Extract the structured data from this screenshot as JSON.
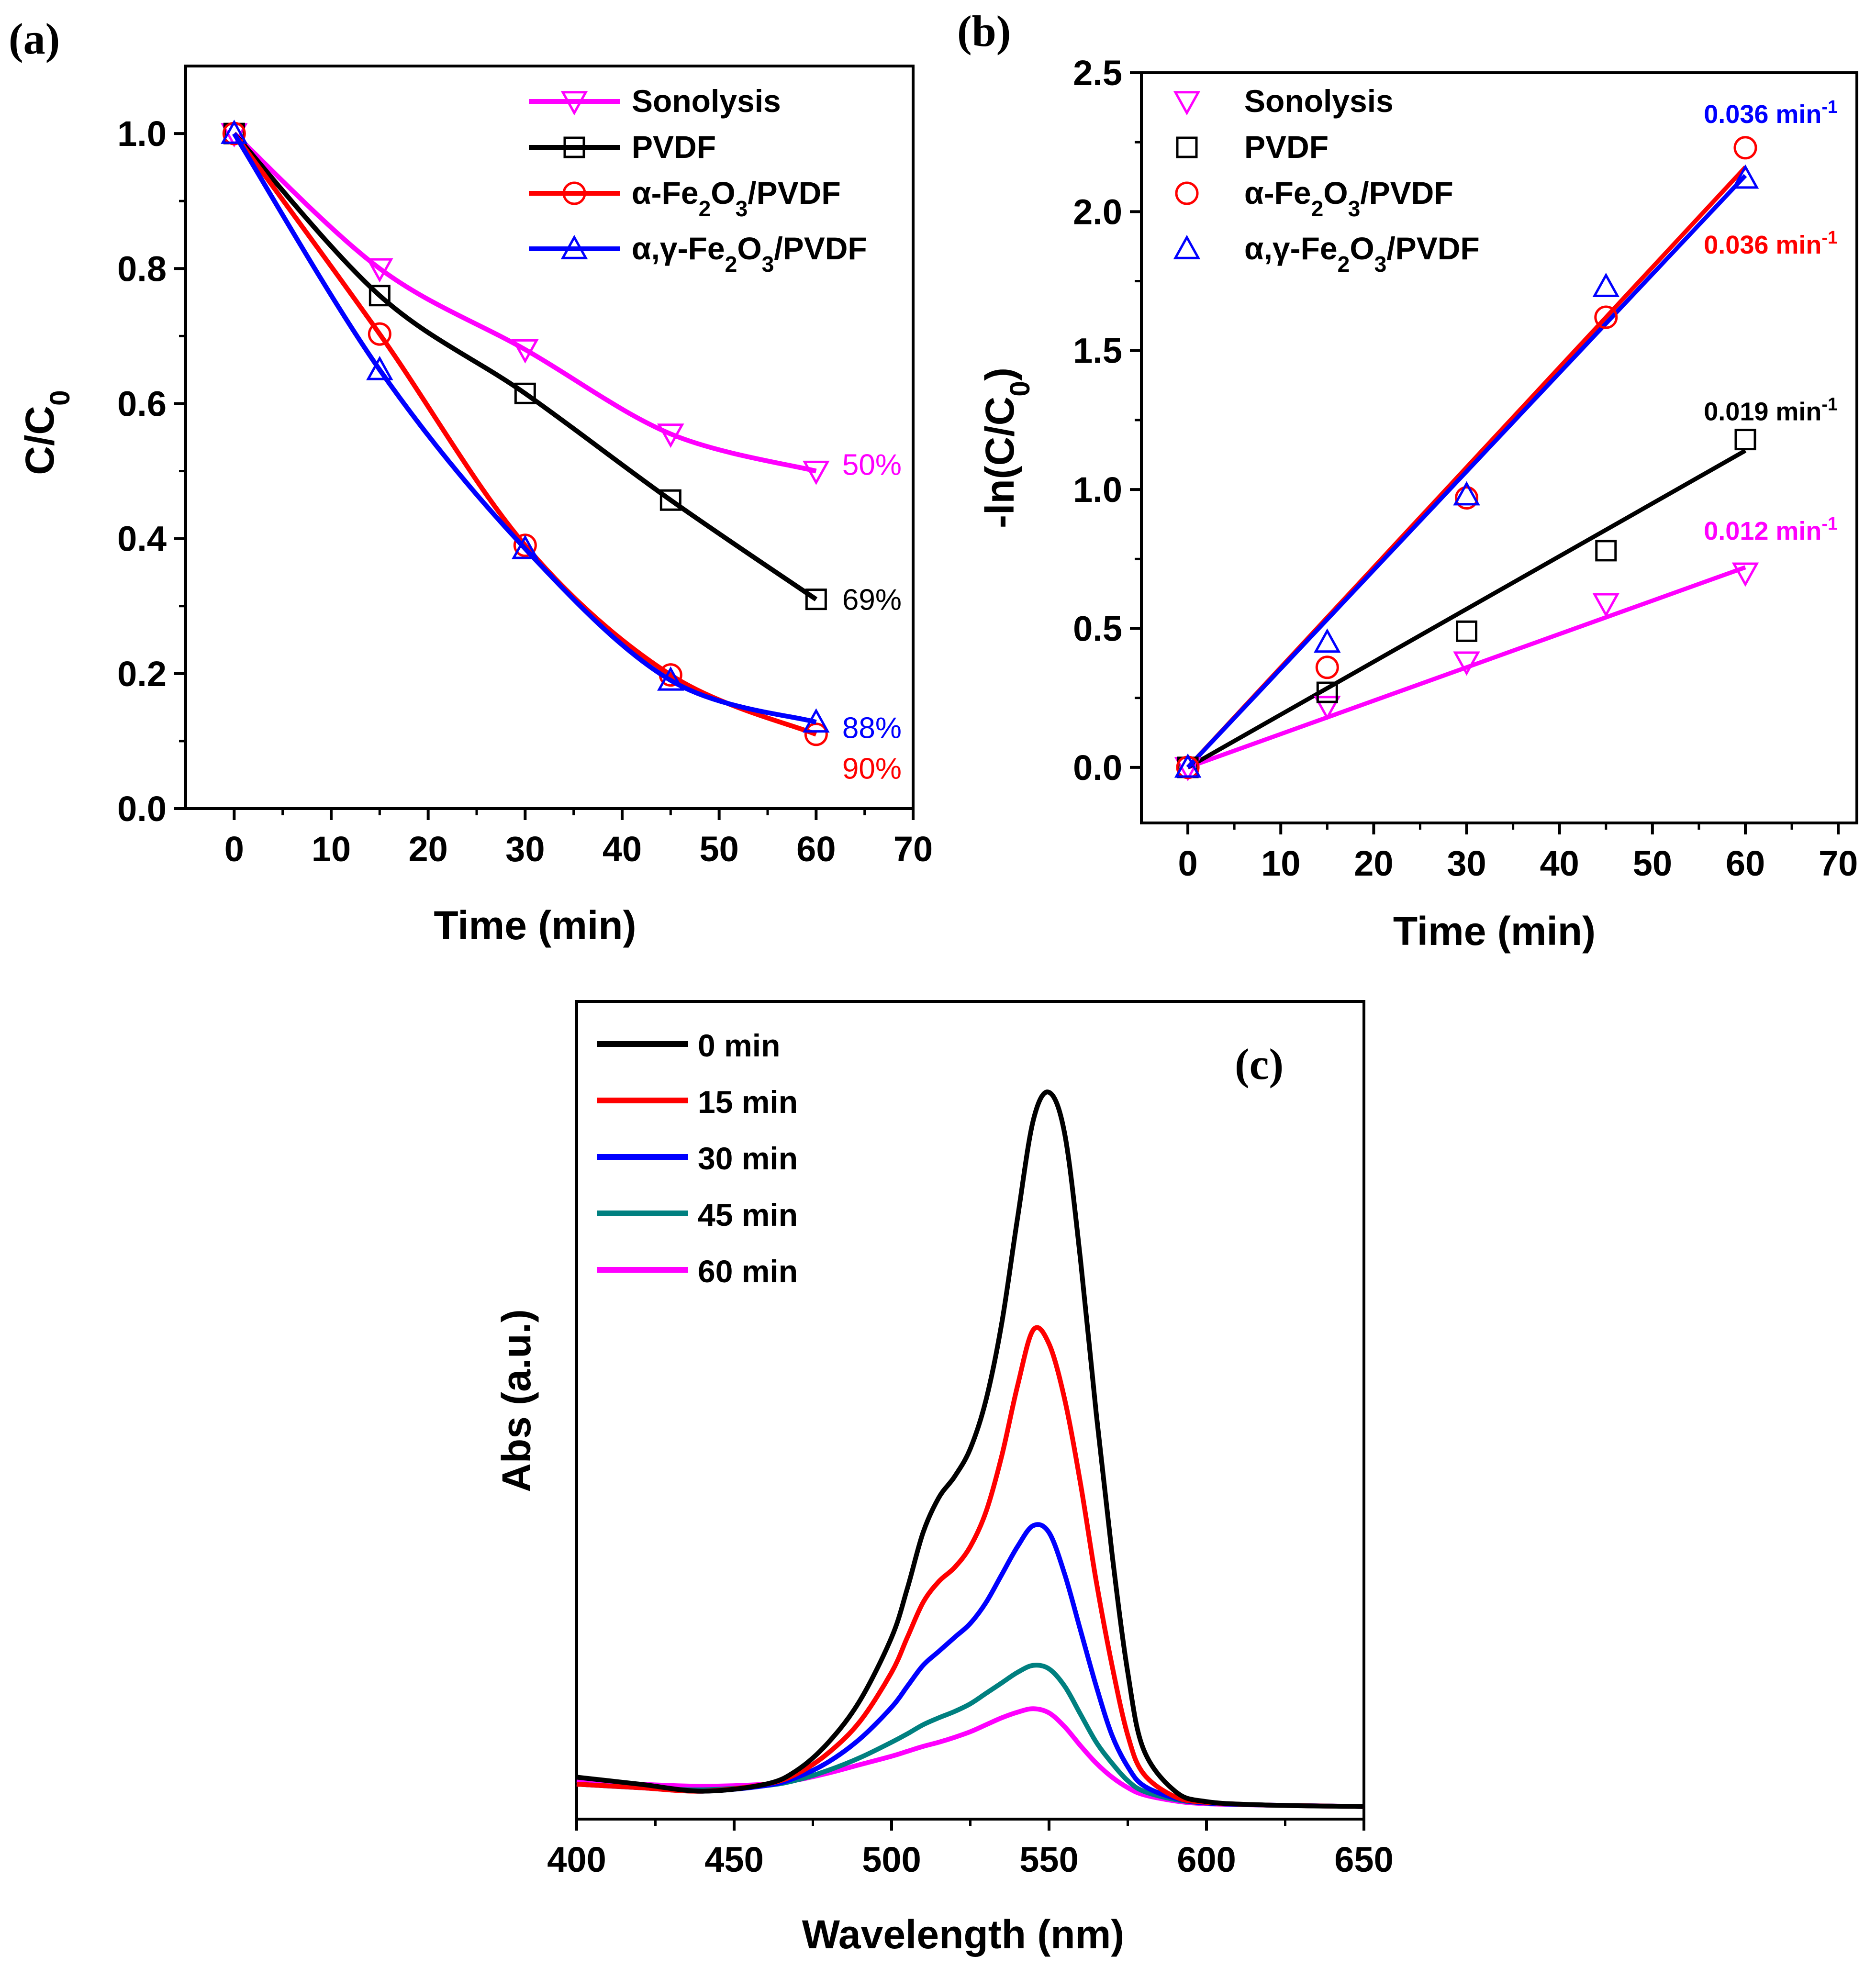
{
  "chart_data": [
    {
      "panel": "(a)",
      "type": "line",
      "xlabel": "Time (min)",
      "ylabel": "C/C0",
      "xlim": [
        -5,
        70
      ],
      "ylim": [
        0,
        1.1
      ],
      "xticks": [
        0,
        10,
        20,
        30,
        40,
        50,
        60,
        70
      ],
      "yticks": [
        0.0,
        0.2,
        0.4,
        0.6,
        0.8,
        1.0
      ],
      "xtick_labels": [
        "0",
        "10",
        "20",
        "30",
        "40",
        "50",
        "60",
        "70"
      ],
      "ytick_labels": [
        "0.0",
        "0.2",
        "0.4",
        "0.6",
        "0.8",
        "1.0"
      ],
      "legend_position": "top-right",
      "series": [
        {
          "name": "Sonolysis",
          "color": "#ff00ff",
          "marker": "triangle-down",
          "x": [
            0,
            15,
            30,
            45,
            60
          ],
          "y": [
            1.0,
            0.8,
            0.68,
            0.555,
            0.5
          ]
        },
        {
          "name": "PVDF",
          "color": "#000000",
          "marker": "square",
          "x": [
            0,
            15,
            30,
            45,
            60
          ],
          "y": [
            1.0,
            0.76,
            0.615,
            0.457,
            0.31
          ]
        },
        {
          "name": "α-Fe2O3/PVDF",
          "color": "#ff0000",
          "marker": "circle",
          "x": [
            0,
            15,
            30,
            45,
            60
          ],
          "y": [
            1.0,
            0.703,
            0.39,
            0.198,
            0.11
          ]
        },
        {
          "name": "α,γ-Fe2O3/PVDF",
          "color": "#0000ff",
          "marker": "triangle-up",
          "x": [
            0,
            15,
            30,
            45,
            60
          ],
          "y": [
            1.0,
            0.65,
            0.385,
            0.19,
            0.128
          ]
        }
      ],
      "annotations": [
        {
          "text": "50%",
          "color": "#ff00ff",
          "x": 62,
          "y": 0.51
        },
        {
          "text": "69%",
          "color": "#000000",
          "x": 62,
          "y": 0.31
        },
        {
          "text": "88%",
          "color": "#0000ff",
          "x": 62,
          "y": 0.12
        },
        {
          "text": "90%",
          "color": "#ff0000",
          "x": 62,
          "y": 0.06
        }
      ]
    },
    {
      "panel": "(b)",
      "type": "scatter",
      "xlabel": "Time (min)",
      "ylabel": "-ln(C/C0)",
      "xlim": [
        -5,
        72
      ],
      "ylim": [
        -0.2,
        2.5
      ],
      "xticks": [
        0,
        10,
        20,
        30,
        40,
        50,
        60,
        70
      ],
      "yticks": [
        0.0,
        0.5,
        1.0,
        1.5,
        2.0,
        2.5
      ],
      "xtick_labels": [
        "0",
        "10",
        "20",
        "30",
        "40",
        "50",
        "60",
        "70"
      ],
      "ytick_labels": [
        "0.0",
        "0.5",
        "1.0",
        "1.5",
        "2.0",
        "2.5"
      ],
      "legend_position": "top-left",
      "series": [
        {
          "name": "Sonolysis",
          "color": "#ff00ff",
          "marker": "triangle-down",
          "x": [
            0,
            15,
            30,
            45,
            60
          ],
          "y": [
            0.0,
            0.22,
            0.38,
            0.59,
            0.7
          ],
          "fit": [
            0,
            0.012
          ]
        },
        {
          "name": "PVDF",
          "color": "#000000",
          "marker": "square",
          "x": [
            0,
            15,
            30,
            45,
            60
          ],
          "y": [
            0.0,
            0.27,
            0.49,
            0.78,
            1.18
          ],
          "fit": [
            0,
            0.019
          ]
        },
        {
          "name": "α-Fe2O3/PVDF",
          "color": "#ff0000",
          "marker": "circle",
          "x": [
            0,
            15,
            30,
            45,
            60
          ],
          "y": [
            0.0,
            0.36,
            0.97,
            1.62,
            2.23
          ],
          "fit": [
            0,
            0.036
          ]
        },
        {
          "name": "α,γ-Fe2O3/PVDF",
          "color": "#0000ff",
          "marker": "triangle-up",
          "x": [
            0,
            15,
            30,
            45,
            60
          ],
          "y": [
            0.0,
            0.45,
            0.98,
            1.73,
            2.12
          ],
          "fit": [
            0,
            0.0355
          ]
        }
      ],
      "annotations": [
        {
          "text": "0.036 min",
          "sup": "-1",
          "color": "#0000ff",
          "x": 60,
          "y": 2.35
        },
        {
          "text": "0.036 min",
          "sup": "-1",
          "color": "#ff0000",
          "x": 60,
          "y": 1.88
        },
        {
          "text": "0.019 min",
          "sup": "-1",
          "color": "#000000",
          "x": 60,
          "y": 1.28
        },
        {
          "text": "0.012 min",
          "sup": "-1",
          "color": "#ff00ff",
          "x": 60,
          "y": 0.85
        }
      ]
    },
    {
      "panel": "(c)",
      "type": "line",
      "xlabel": "Wavelength (nm)",
      "ylabel": "Abs (a.u.)",
      "xlim": [
        400,
        650
      ],
      "ylim": [
        -0.02,
        1.15
      ],
      "xticks": [
        400,
        450,
        500,
        550,
        600,
        650
      ],
      "xtick_labels": [
        "400",
        "450",
        "500",
        "550",
        "600",
        "650"
      ],
      "legend_position": "top-left",
      "series": [
        {
          "name": "0 min",
          "color": "#000000",
          "x": [
            400,
            420,
            440,
            460,
            470,
            480,
            490,
            500,
            505,
            510,
            515,
            520,
            525,
            530,
            535,
            540,
            545,
            550,
            555,
            560,
            565,
            570,
            575,
            580,
            590,
            600,
            620,
            650
          ],
          "y": [
            0.04,
            0.03,
            0.02,
            0.03,
            0.05,
            0.09,
            0.15,
            0.24,
            0.31,
            0.39,
            0.44,
            0.47,
            0.51,
            0.58,
            0.69,
            0.84,
            0.98,
            1.02,
            0.96,
            0.78,
            0.56,
            0.36,
            0.19,
            0.08,
            0.02,
            0.005,
            0.0,
            -0.002
          ]
        },
        {
          "name": "15 min",
          "color": "#ff0000",
          "x": [
            400,
            420,
            440,
            460,
            470,
            480,
            490,
            500,
            505,
            510,
            515,
            520,
            525,
            530,
            535,
            540,
            545,
            550,
            555,
            560,
            565,
            570,
            575,
            580,
            590,
            600,
            620,
            650
          ],
          "y": [
            0.03,
            0.025,
            0.02,
            0.03,
            0.045,
            0.075,
            0.12,
            0.19,
            0.24,
            0.29,
            0.32,
            0.34,
            0.37,
            0.42,
            0.5,
            0.6,
            0.68,
            0.66,
            0.58,
            0.46,
            0.32,
            0.2,
            0.1,
            0.045,
            0.012,
            0.004,
            0.0,
            -0.002
          ]
        },
        {
          "name": "30 min",
          "color": "#0000ff",
          "x": [
            400,
            420,
            440,
            460,
            470,
            480,
            490,
            500,
            505,
            510,
            515,
            520,
            525,
            530,
            535,
            540,
            545,
            550,
            555,
            560,
            565,
            570,
            575,
            580,
            590,
            600,
            620,
            650
          ],
          "y": [
            0.03,
            0.025,
            0.02,
            0.028,
            0.04,
            0.062,
            0.095,
            0.14,
            0.17,
            0.2,
            0.22,
            0.24,
            0.26,
            0.29,
            0.33,
            0.37,
            0.4,
            0.39,
            0.33,
            0.25,
            0.17,
            0.1,
            0.055,
            0.028,
            0.01,
            0.003,
            0.0,
            -0.002
          ]
        },
        {
          "name": "45 min",
          "color": "#008080",
          "x": [
            400,
            420,
            440,
            460,
            470,
            480,
            490,
            500,
            505,
            510,
            515,
            520,
            525,
            530,
            535,
            540,
            545,
            550,
            555,
            560,
            565,
            570,
            575,
            580,
            590,
            600,
            620,
            650
          ],
          "y": [
            0.03,
            0.025,
            0.022,
            0.028,
            0.036,
            0.05,
            0.068,
            0.09,
            0.102,
            0.115,
            0.125,
            0.134,
            0.145,
            0.16,
            0.175,
            0.19,
            0.2,
            0.195,
            0.17,
            0.13,
            0.09,
            0.06,
            0.035,
            0.02,
            0.008,
            0.003,
            0.0,
            -0.002
          ]
        },
        {
          "name": "60 min",
          "color": "#ff00ff",
          "x": [
            400,
            420,
            440,
            460,
            470,
            480,
            490,
            500,
            505,
            510,
            515,
            520,
            525,
            530,
            535,
            540,
            545,
            550,
            555,
            560,
            565,
            570,
            575,
            580,
            590,
            600,
            620,
            650
          ],
          "y": [
            0.035,
            0.03,
            0.027,
            0.03,
            0.036,
            0.046,
            0.058,
            0.07,
            0.077,
            0.084,
            0.09,
            0.097,
            0.105,
            0.115,
            0.125,
            0.133,
            0.138,
            0.132,
            0.112,
            0.085,
            0.06,
            0.04,
            0.025,
            0.015,
            0.006,
            0.002,
            0.0,
            -0.002
          ]
        }
      ]
    }
  ]
}
